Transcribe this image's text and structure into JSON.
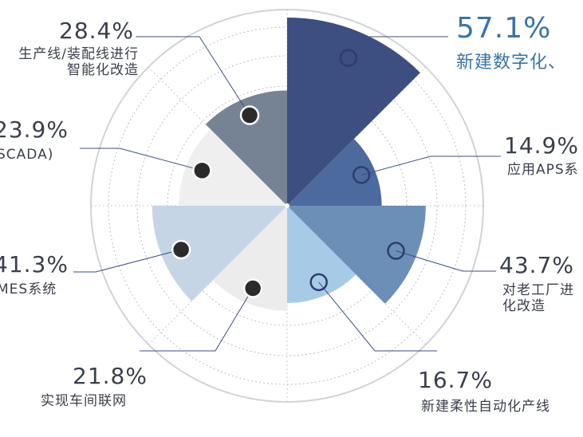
{
  "chart_data": {
    "type": "pie",
    "variant": "rose",
    "unit": "%",
    "slices": [
      {
        "value": 57.1,
        "value_label": "57.1%",
        "label": "新建数字化、",
        "color": "#3d4e80",
        "marker": "open"
      },
      {
        "value": 14.9,
        "value_label": "14.9%",
        "label": "应用APS系",
        "color": "#4d6a9f",
        "marker": "open"
      },
      {
        "value": 43.7,
        "value_label": "43.7%",
        "label": "对老工厂进\n化改造",
        "color": "#6c8fb8",
        "marker": "open"
      },
      {
        "value": 16.7,
        "value_label": "16.7%",
        "label": "新建柔性自动化产线",
        "color": "#a7cbe6",
        "marker": "open"
      },
      {
        "value": 21.8,
        "value_label": "21.8%",
        "label": "实现车间联网",
        "color": "#ececec",
        "marker": "filled"
      },
      {
        "value": 41.3,
        "value_label": "41.3%",
        "label": "MES系统",
        "color": "#c5d5e6",
        "marker": "filled"
      },
      {
        "value": 23.9,
        "value_label": "23.9%",
        "label": "SCADA)",
        "color": "#efefef",
        "marker": "filled"
      },
      {
        "value": 28.4,
        "value_label": "28.4%",
        "label": "生产线/装配线进行\n智能化改造",
        "color": "#768394",
        "marker": "filled"
      }
    ],
    "grid": true,
    "legend": "none"
  }
}
